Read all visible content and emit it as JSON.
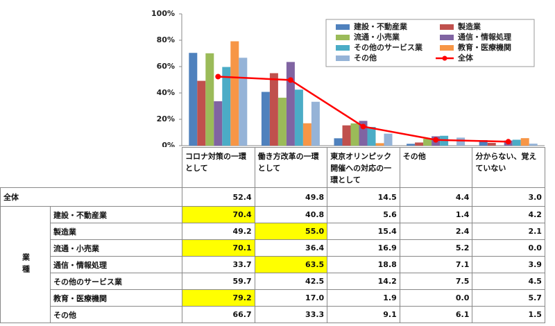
{
  "chart_data": {
    "type": "bar",
    "ylim": [
      0,
      100
    ],
    "yticks": [
      {
        "value": 0,
        "label": "0%"
      },
      {
        "value": 20,
        "label": "20%"
      },
      {
        "value": 40,
        "label": "40%"
      },
      {
        "value": 60,
        "label": "60%"
      },
      {
        "value": 80,
        "label": "80%"
      },
      {
        "value": 100,
        "label": "100%"
      }
    ],
    "grid": false,
    "legend": "top-right",
    "categories": [
      "コロナ対策の一環として",
      "働き方改革の一環として",
      "東京オリンピック開催への対応の一環として",
      "その他",
      "分からない、覚えていない"
    ],
    "highlight_color": "#ffff00",
    "series": [
      {
        "name": "建設・不動産業",
        "color": "#4f81bd",
        "values": [
          70.4,
          40.8,
          5.6,
          1.4,
          4.2
        ],
        "value_labels": [
          "70.4",
          "40.8",
          "5.6",
          "1.4",
          "4.2"
        ],
        "highlight": [
          0
        ]
      },
      {
        "name": "製造業",
        "color": "#c0504d",
        "values": [
          49.2,
          55.0,
          15.4,
          2.4,
          2.1
        ],
        "value_labels": [
          "49.2",
          "55.0",
          "15.4",
          "2.4",
          "2.1"
        ],
        "highlight": [
          1
        ]
      },
      {
        "name": "流通・小売業",
        "color": "#9bbb59",
        "values": [
          70.1,
          36.4,
          16.9,
          5.2,
          0.0
        ],
        "value_labels": [
          "70.1",
          "36.4",
          "16.9",
          "5.2",
          "0.0"
        ],
        "highlight": [
          0
        ]
      },
      {
        "name": "通信・情報処理",
        "color": "#8064a2",
        "values": [
          33.7,
          63.5,
          18.8,
          7.1,
          3.9
        ],
        "value_labels": [
          "33.7",
          "63.5",
          "18.8",
          "7.1",
          "3.9"
        ],
        "highlight": [
          1
        ]
      },
      {
        "name": "その他のサービス業",
        "color": "#4bacc6",
        "values": [
          59.7,
          42.5,
          14.2,
          7.5,
          4.5
        ],
        "value_labels": [
          "59.7",
          "42.5",
          "14.2",
          "7.5",
          "4.5"
        ],
        "highlight": []
      },
      {
        "name": "教育・医療機関",
        "color": "#f79646",
        "values": [
          79.2,
          17.0,
          1.9,
          0.0,
          5.7
        ],
        "value_labels": [
          "79.2",
          "17.0",
          "1.9",
          "0.0",
          "5.7"
        ],
        "highlight": [
          0
        ]
      },
      {
        "name": "その他",
        "color": "#95b3d7",
        "values": [
          66.7,
          33.3,
          9.1,
          6.1,
          1.5
        ],
        "value_labels": [
          "66.7",
          "33.3",
          "9.1",
          "6.1",
          "1.5"
        ],
        "highlight": []
      },
      {
        "name": "全体",
        "type": "line",
        "color": "#ff0000",
        "values": [
          52.4,
          49.8,
          14.5,
          4.4,
          3.0
        ],
        "value_labels": [
          "52.4",
          "49.8",
          "14.5",
          "4.4",
          "3.0"
        ],
        "highlight": []
      }
    ]
  },
  "table": {
    "group_label": "業種"
  }
}
